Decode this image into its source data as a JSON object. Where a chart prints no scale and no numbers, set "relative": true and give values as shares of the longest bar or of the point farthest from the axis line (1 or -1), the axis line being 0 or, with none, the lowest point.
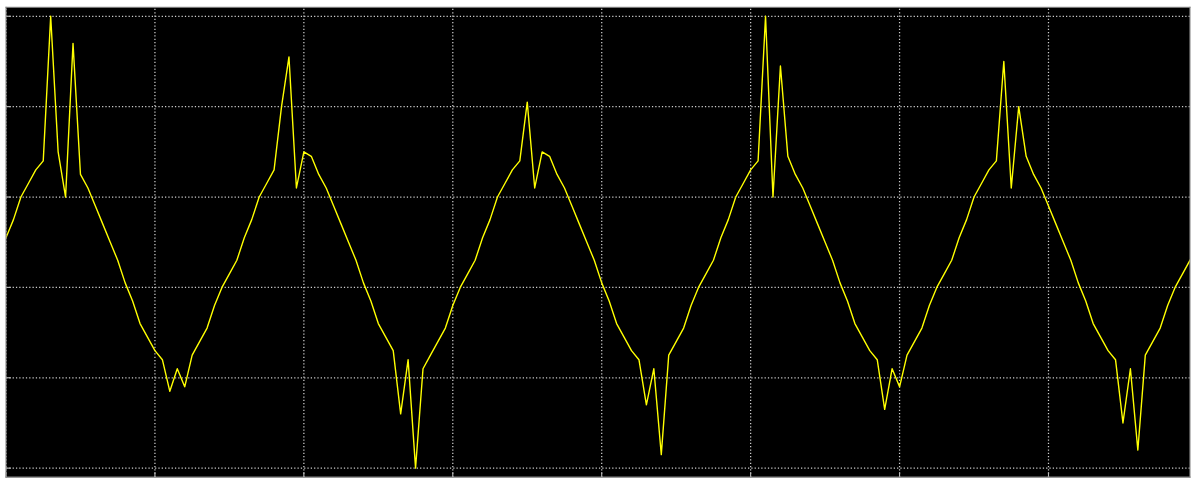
{
  "chart_data": {
    "type": "line",
    "relative": true,
    "grid": true,
    "tick_labels": false,
    "marker": "none",
    "line_style": "solid",
    "categories": [
      null,
      null,
      null,
      null,
      null,
      null,
      null,
      null,
      null,
      null,
      null,
      null,
      null,
      null,
      null,
      null,
      null,
      null,
      null,
      null,
      null,
      null,
      null,
      null,
      null,
      null,
      null,
      null,
      null,
      null,
      null,
      null,
      null,
      null,
      null,
      null,
      null,
      null,
      null,
      null,
      null,
      null,
      null,
      null,
      null,
      null,
      null,
      null,
      null,
      null,
      null,
      null,
      null,
      null,
      null,
      null,
      null,
      null,
      null,
      null,
      null,
      null,
      null,
      null,
      null,
      null,
      null,
      null,
      null,
      null,
      null,
      null,
      null,
      null,
      null,
      null,
      null,
      null,
      null,
      null,
      null,
      null,
      null,
      null,
      null,
      null,
      null,
      null,
      null,
      null,
      null,
      null,
      null,
      null,
      null,
      null,
      null,
      null,
      null,
      null,
      null,
      null,
      null,
      null,
      null,
      null,
      null,
      null,
      null,
      null,
      null,
      null,
      null,
      null,
      null,
      null,
      null,
      null,
      null,
      null,
      null,
      null,
      null,
      null,
      null,
      null,
      null,
      null,
      null,
      null,
      null,
      null,
      null,
      null,
      null,
      null,
      null,
      null,
      null,
      null,
      null,
      null,
      null,
      null,
      null,
      null,
      null,
      null,
      null,
      null,
      null,
      null,
      null,
      null,
      null,
      null,
      null,
      null,
      null,
      null
    ],
    "series": [
      {
        "color": "#ffff00",
        "values": [
          0.51,
          0.55,
          0.6,
          0.63,
          0.66,
          0.68,
          1.0,
          0.7,
          0.6,
          0.94,
          0.65,
          0.62,
          0.58,
          0.54,
          0.5,
          0.46,
          0.41,
          0.37,
          0.32,
          0.29,
          0.26,
          0.24,
          0.17,
          0.22,
          0.18,
          0.25,
          0.28,
          0.31,
          0.36,
          0.4,
          0.43,
          0.46,
          0.51,
          0.55,
          0.6,
          0.63,
          0.66,
          0.8,
          0.91,
          0.62,
          0.7,
          0.69,
          0.65,
          0.62,
          0.58,
          0.54,
          0.5,
          0.46,
          0.41,
          0.37,
          0.32,
          0.29,
          0.26,
          0.12,
          0.24,
          0.0,
          0.22,
          0.25,
          0.28,
          0.31,
          0.36,
          0.4,
          0.43,
          0.46,
          0.51,
          0.55,
          0.6,
          0.63,
          0.66,
          0.68,
          0.81,
          0.62,
          0.7,
          0.69,
          0.65,
          0.62,
          0.58,
          0.54,
          0.5,
          0.46,
          0.41,
          0.37,
          0.32,
          0.29,
          0.26,
          0.24,
          0.14,
          0.22,
          0.03,
          0.25,
          0.28,
          0.31,
          0.36,
          0.4,
          0.43,
          0.46,
          0.51,
          0.55,
          0.6,
          0.63,
          0.66,
          0.68,
          1.0,
          0.6,
          0.89,
          0.69,
          0.65,
          0.62,
          0.58,
          0.54,
          0.5,
          0.46,
          0.41,
          0.37,
          0.32,
          0.29,
          0.26,
          0.24,
          0.13,
          0.22,
          0.18,
          0.25,
          0.28,
          0.31,
          0.36,
          0.4,
          0.43,
          0.46,
          0.51,
          0.55,
          0.6,
          0.63,
          0.66,
          0.68,
          0.9,
          0.62,
          0.8,
          0.69,
          0.65,
          0.62,
          0.58,
          0.54,
          0.5,
          0.46,
          0.41,
          0.37,
          0.32,
          0.29,
          0.26,
          0.24,
          0.1,
          0.22,
          0.04,
          0.25,
          0.28,
          0.31,
          0.36,
          0.4,
          0.43,
          0.46
        ]
      }
    ]
  }
}
